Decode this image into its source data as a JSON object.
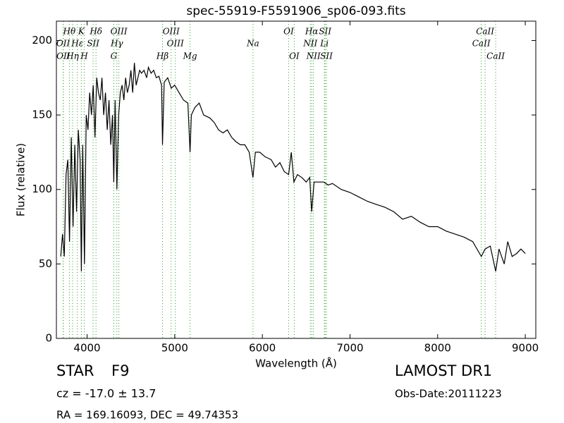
{
  "chart_data": {
    "type": "line",
    "title": "spec-55919-F5591906_sp06-093.fits",
    "x_label": "Wavelength (Å)",
    "y_label": "Flux (relative)",
    "xlim": [
      3650,
      9120
    ],
    "ylim": [
      0,
      213
    ],
    "xticks": [
      4000,
      5000,
      6000,
      7000,
      8000,
      9000
    ],
    "yticks": [
      0,
      50,
      100,
      150,
      200
    ],
    "color": "#000000",
    "line_color": "#2ca02c",
    "x": [
      3700,
      3720,
      3740,
      3760,
      3780,
      3800,
      3820,
      3840,
      3860,
      3880,
      3900,
      3920,
      3935,
      3950,
      3970,
      3990,
      4010,
      4030,
      4050,
      4070,
      4090,
      4110,
      4130,
      4150,
      4170,
      4190,
      4210,
      4230,
      4250,
      4270,
      4290,
      4305,
      4320,
      4340,
      4360,
      4380,
      4400,
      4420,
      4440,
      4460,
      4480,
      4500,
      4520,
      4540,
      4560,
      4580,
      4600,
      4620,
      4650,
      4680,
      4700,
      4730,
      4760,
      4790,
      4820,
      4850,
      4861,
      4880,
      4920,
      4960,
      5000,
      5050,
      5100,
      5150,
      5175,
      5190,
      5230,
      5280,
      5330,
      5400,
      5450,
      5500,
      5550,
      5600,
      5650,
      5700,
      5750,
      5800,
      5850,
      5893,
      5920,
      5970,
      6030,
      6100,
      6150,
      6200,
      6250,
      6300,
      6330,
      6360,
      6400,
      6450,
      6500,
      6540,
      6563,
      6590,
      6650,
      6700,
      6750,
      6800,
      6900,
      7000,
      7100,
      7200,
      7300,
      7400,
      7500,
      7600,
      7700,
      7800,
      7900,
      8000,
      8100,
      8200,
      8300,
      8400,
      8498,
      8542,
      8600,
      8662,
      8700,
      8760,
      8800,
      8850,
      8900,
      8950,
      9000
    ],
    "values": [
      55,
      70,
      55,
      110,
      120,
      65,
      135,
      75,
      130,
      85,
      140,
      120,
      45,
      130,
      50,
      150,
      140,
      165,
      150,
      170,
      135,
      175,
      165,
      160,
      175,
      150,
      165,
      140,
      160,
      130,
      150,
      105,
      160,
      100,
      150,
      165,
      170,
      160,
      175,
      165,
      170,
      180,
      165,
      185,
      170,
      175,
      180,
      178,
      180,
      175,
      182,
      178,
      180,
      175,
      176,
      170,
      130,
      172,
      175,
      168,
      170,
      165,
      160,
      158,
      125,
      150,
      155,
      158,
      150,
      148,
      145,
      140,
      138,
      140,
      135,
      132,
      130,
      130,
      125,
      108,
      125,
      125,
      122,
      120,
      115,
      118,
      112,
      110,
      125,
      105,
      110,
      108,
      105,
      108,
      85,
      105,
      105,
      105,
      103,
      104,
      100,
      98,
      95,
      92,
      90,
      88,
      85,
      80,
      82,
      78,
      75,
      75,
      72,
      70,
      68,
      65,
      55,
      60,
      62,
      45,
      60,
      50,
      65,
      55,
      57,
      60,
      57
    ],
    "line_rows": [
      [
        {
          "label": "Hθ",
          "wavelength": 3798
        },
        {
          "label": "K",
          "wavelength": 3934
        },
        {
          "label": "Hδ",
          "wavelength": 4102
        },
        {
          "label": "OIII",
          "wavelength": 4363
        },
        {
          "label": "OIII",
          "wavelength": 4959
        },
        {
          "label": "OI",
          "wavelength": 6300
        },
        {
          "label": "Hα",
          "wavelength": 6563
        },
        {
          "label": "SII",
          "wavelength": 6716
        },
        {
          "label": "CaII",
          "wavelength": 8542
        }
      ],
      [
        {
          "label": "OII",
          "wavelength": 3727
        },
        {
          "label": "Hε",
          "wavelength": 3889
        },
        {
          "label": "SII",
          "wavelength": 4069
        },
        {
          "label": "Hγ",
          "wavelength": 4340
        },
        {
          "label": "OIII",
          "wavelength": 5007
        },
        {
          "label": "Na",
          "wavelength": 5893
        },
        {
          "label": "NII",
          "wavelength": 6548
        },
        {
          "label": "Li",
          "wavelength": 6708
        },
        {
          "label": "CaII",
          "wavelength": 8498
        }
      ],
      [
        {
          "label": "OII",
          "wavelength": 3729
        },
        {
          "label": "Hη",
          "wavelength": 3835
        },
        {
          "label": "H",
          "wavelength": 3968
        },
        {
          "label": "G",
          "wavelength": 4305
        },
        {
          "label": "Hβ",
          "wavelength": 4861
        },
        {
          "label": "Mg",
          "wavelength": 5175
        },
        {
          "label": "OI",
          "wavelength": 6364
        },
        {
          "label": "NII",
          "wavelength": 6583
        },
        {
          "label": "SII",
          "wavelength": 6731
        },
        {
          "label": "CaII",
          "wavelength": 8662
        }
      ]
    ],
    "info": {
      "class": "STAR",
      "subclass": "F9",
      "cz": "cz = -17.0 ± 13.7",
      "coords": "RA = 169.16093, DEC = 49.74353",
      "survey": "LAMOST DR1",
      "obs_date": "Obs-Date:20111223"
    }
  }
}
